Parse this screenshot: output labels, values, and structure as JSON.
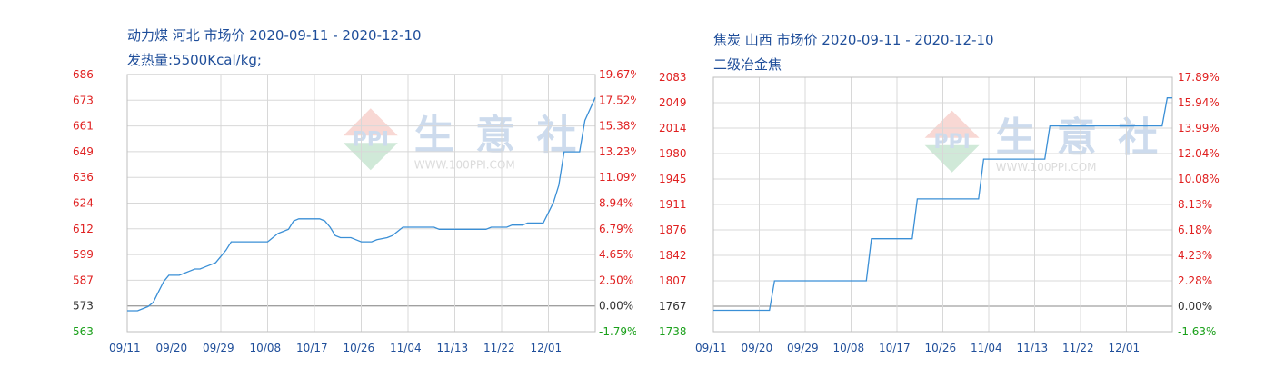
{
  "charts": [
    {
      "title": "动力煤 河北 市场价 2020-09-11 - 2020-12-10",
      "subtitle": "发热量:5500Kcal/kg;",
      "watermark": {
        "brand": "生 意 社",
        "url": "WWW.100PPI.COM",
        "logo_text": "PPI"
      },
      "colors": {
        "line": "#3a8fd6",
        "left_axis": "#e02020",
        "left_axis_base": "#333333",
        "left_axis_below": "#1aa01a",
        "right_axis": "#e02020",
        "right_axis_base": "#333333",
        "right_axis_below": "#1aa01a",
        "x_axis": "#1f4e9a",
        "grid": "#d8d8d8"
      },
      "chart_data": {
        "type": "line",
        "x_ticks": [
          "09/11",
          "09/20",
          "09/29",
          "10/08",
          "10/17",
          "10/26",
          "11/04",
          "11/13",
          "11/22",
          "12/01"
        ],
        "x_range": [
          "2020-09-11",
          "2020-12-10"
        ],
        "y_left_ticks": [
          686,
          673,
          661,
          649,
          636,
          624,
          612,
          599,
          587,
          573,
          563
        ],
        "y_left_range": [
          563,
          686
        ],
        "y_left_base": 573,
        "y_right_ticks": [
          "19.67%",
          "17.52%",
          "15.38%",
          "13.23%",
          "11.09%",
          "8.94%",
          "6.79%",
          "4.65%",
          "2.50%",
          "0.00%",
          "-1.79%"
        ],
        "grid": true,
        "series": [
          {
            "x": [
              "2020-09-11",
              "2020-09-13",
              "2020-09-15",
              "2020-09-16",
              "2020-09-17",
              "2020-09-18",
              "2020-09-19",
              "2020-09-20",
              "2020-09-21",
              "2020-09-22",
              "2020-09-23",
              "2020-09-24",
              "2020-09-25",
              "2020-09-26",
              "2020-09-28",
              "2020-09-29",
              "2020-09-30",
              "2020-10-01",
              "2020-10-08",
              "2020-10-09",
              "2020-10-10",
              "2020-10-11",
              "2020-10-12",
              "2020-10-13",
              "2020-10-14",
              "2020-10-18",
              "2020-10-19",
              "2020-10-20",
              "2020-10-21",
              "2020-10-22",
              "2020-10-24",
              "2020-10-25",
              "2020-10-26",
              "2020-10-28",
              "2020-10-29",
              "2020-10-31",
              "2020-11-01",
              "2020-11-02",
              "2020-11-03",
              "2020-11-05",
              "2020-11-09",
              "2020-11-10",
              "2020-11-19",
              "2020-11-20",
              "2020-11-23",
              "2020-11-24",
              "2020-11-26",
              "2020-11-27",
              "2020-11-30",
              "2020-12-01",
              "2020-12-02",
              "2020-12-03",
              "2020-12-04",
              "2020-12-07",
              "2020-12-08",
              "2020-12-10"
            ],
            "values": [
              573,
              573,
              575,
              577,
              582,
              587,
              590,
              590,
              590,
              591,
              592,
              593,
              593,
              594,
              596,
              599,
              602,
              606,
              606,
              608,
              610,
              611,
              612,
              616,
              617,
              617,
              616,
              613,
              609,
              608,
              608,
              607,
              606,
              606,
              607,
              608,
              609,
              611,
              613,
              613,
              613,
              612,
              612,
              613,
              613,
              614,
              614,
              615,
              615,
              620,
              625,
              633,
              649,
              649,
              664,
              675
            ]
          }
        ]
      }
    },
    {
      "title": "焦炭 山西 市场价 2020-09-11 - 2020-12-10",
      "subtitle": "二级冶金焦",
      "watermark": {
        "brand": "生 意 社",
        "url": "WWW.100PPI.COM",
        "logo_text": "PPI"
      },
      "colors": {
        "line": "#3a8fd6",
        "left_axis": "#e02020",
        "left_axis_base": "#333333",
        "left_axis_below": "#1aa01a",
        "right_axis": "#e02020",
        "right_axis_base": "#333333",
        "right_axis_below": "#1aa01a",
        "x_axis": "#1f4e9a",
        "grid": "#d8d8d8"
      },
      "chart_data": {
        "type": "line",
        "x_ticks": [
          "09/11",
          "09/20",
          "09/29",
          "10/08",
          "10/17",
          "10/26",
          "11/04",
          "11/13",
          "11/22",
          "12/01"
        ],
        "x_range": [
          "2020-09-11",
          "2020-12-10"
        ],
        "y_left_ticks": [
          2083,
          2049,
          2014,
          1980,
          1945,
          1911,
          1876,
          1842,
          1807,
          1767,
          1738
        ],
        "y_left_range": [
          1738,
          2083
        ],
        "y_left_base": 1767,
        "y_right_ticks": [
          "17.89%",
          "15.94%",
          "13.99%",
          "12.04%",
          "10.08%",
          "8.13%",
          "6.18%",
          "4.23%",
          "2.28%",
          "0.00%",
          "-1.63%"
        ],
        "grid": true,
        "series": [
          {
            "x": [
              "2020-09-11",
              "2020-09-22",
              "2020-09-23",
              "2020-10-11",
              "2020-10-12",
              "2020-10-20",
              "2020-10-21",
              "2020-11-02",
              "2020-11-03",
              "2020-11-15",
              "2020-11-16",
              "2020-12-08",
              "2020-12-09",
              "2020-12-10"
            ],
            "values": [
              1767,
              1767,
              1807,
              1807,
              1864,
              1864,
              1918,
              1918,
              1972,
              1972,
              2017,
              2017,
              2055,
              2055
            ]
          }
        ]
      }
    }
  ]
}
